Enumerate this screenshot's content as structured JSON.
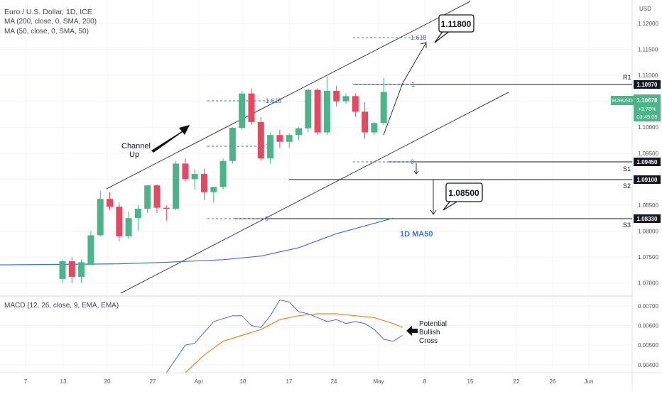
{
  "header": {
    "symbol_line": "Euro / U.S. Dollar, 1D, ICE",
    "ma200_line": "MA (200, close, 0, SMA, 200)",
    "ma50_line": "MA (50, close, 0, SMA, 50)",
    "macd_line": "MACD (12, 26, close, 9, EMA, EMA)"
  },
  "price_axis": {
    "currency": "USD",
    "ticks": [
      "1.12000",
      "1.11500",
      "1.11000",
      "1.10500",
      "1.10000",
      "1.09500",
      "1.09000",
      "1.08500",
      "1.08000",
      "1.07500",
      "1.07000"
    ]
  },
  "macd_axis": {
    "ticks": [
      "0.00700",
      "0.00600",
      "0.00500",
      "0.00400"
    ]
  },
  "time_axis": {
    "labels": [
      "7",
      "13",
      "20",
      "27",
      "Apr",
      "10",
      "17",
      "24",
      "May",
      "8",
      "15",
      "22",
      "26",
      "Jun"
    ]
  },
  "badges": {
    "r1_label": "R1",
    "r1_value": "1.10970",
    "s1_label": "S1",
    "s1_value": "1.09450",
    "s2_label": "S2",
    "s2_value": "1.09100",
    "s3_label": "S3",
    "s3_value": "1.08330",
    "current_symbol": "EURUSD",
    "current_price": "1.10678",
    "current_change": "+3.78%",
    "current_timer": "03:45:05"
  },
  "annotations": {
    "target_up": "1.11800",
    "target_down": "1.08500",
    "channel_label_1": "Channel",
    "channel_label_2": "Up",
    "ma50_label": "1D MA50",
    "macd_note_1": "Potential",
    "macd_note_2": "Bullish",
    "macd_note_3": "Cross",
    "fib_1618_a": "1.618",
    "fib_1_a": "1",
    "fib_0_a": "0",
    "fib_1618_b": "1.618",
    "fib_1_b": "1",
    "fib_0_b": "0"
  },
  "colors": {
    "up": "#4db389",
    "down": "#e8475f",
    "ma50": "#3f6fdc",
    "macd": "#3f6fdc",
    "signal": "#f08522",
    "current_badge": "#4db389",
    "fib": "#3f6fdc"
  },
  "chart_data": {
    "type": "candlestick",
    "pair": "EUR/USD",
    "timeframe": "1D",
    "candles": [
      {
        "o": 1.0708,
        "h": 1.0745,
        "l": 1.07,
        "c": 1.0742
      },
      {
        "o": 1.0742,
        "h": 1.075,
        "l": 1.07,
        "c": 1.0712
      },
      {
        "o": 1.0712,
        "h": 1.0745,
        "l": 1.07,
        "c": 1.074
      },
      {
        "o": 1.0735,
        "h": 1.08,
        "l": 1.0735,
        "c": 1.0792
      },
      {
        "o": 1.0792,
        "h": 1.0878,
        "l": 1.079,
        "c": 1.0862
      },
      {
        "o": 1.0862,
        "h": 1.0875,
        "l": 1.084,
        "c": 1.0847
      },
      {
        "o": 1.0847,
        "h": 1.0855,
        "l": 1.078,
        "c": 1.079
      },
      {
        "o": 1.079,
        "h": 1.0838,
        "l": 1.0785,
        "c": 1.0825
      },
      {
        "o": 1.0825,
        "h": 1.085,
        "l": 1.08,
        "c": 1.0843
      },
      {
        "o": 1.0843,
        "h": 1.0888,
        "l": 1.0835,
        "c": 1.0888
      },
      {
        "o": 1.0888,
        "h": 1.089,
        "l": 1.0835,
        "c": 1.0845
      },
      {
        "o": 1.0845,
        "h": 1.085,
        "l": 1.082,
        "c": 1.0843
      },
      {
        "o": 1.0843,
        "h": 1.0935,
        "l": 1.084,
        "c": 1.093
      },
      {
        "o": 1.093,
        "h": 1.094,
        "l": 1.0895,
        "c": 1.09
      },
      {
        "o": 1.09,
        "h": 1.0918,
        "l": 1.088,
        "c": 1.091
      },
      {
        "o": 1.091,
        "h": 1.092,
        "l": 1.086,
        "c": 1.0875
      },
      {
        "o": 1.0875,
        "h": 1.0885,
        "l": 1.0855,
        "c": 1.0885
      },
      {
        "o": 1.0885,
        "h": 1.094,
        "l": 1.088,
        "c": 1.0935
      },
      {
        "o": 1.0935,
        "h": 1.1,
        "l": 1.093,
        "c": 1.0999
      },
      {
        "o": 1.0999,
        "h": 1.107,
        "l": 1.0995,
        "c": 1.1065
      },
      {
        "o": 1.1065,
        "h": 1.1075,
        "l": 1.1005,
        "c": 1.101
      },
      {
        "o": 1.101,
        "h": 1.102,
        "l": 1.0935,
        "c": 1.094
      },
      {
        "o": 1.094,
        "h": 1.099,
        "l": 1.093,
        "c": 1.0985
      },
      {
        "o": 1.0985,
        "h": 1.0995,
        "l": 1.096,
        "c": 1.0972
      },
      {
        "o": 1.0972,
        "h": 1.0988,
        "l": 1.096,
        "c": 1.0985
      },
      {
        "o": 1.0985,
        "h": 1.1,
        "l": 1.0975,
        "c": 1.0998
      },
      {
        "o": 1.0998,
        "h": 1.1075,
        "l": 1.099,
        "c": 1.1072
      },
      {
        "o": 1.1072,
        "h": 1.1075,
        "l": 1.0985,
        "c": 1.099
      },
      {
        "o": 1.099,
        "h": 1.1098,
        "l": 1.0985,
        "c": 1.107
      },
      {
        "o": 1.107,
        "h": 1.108,
        "l": 1.104,
        "c": 1.105
      },
      {
        "o": 1.105,
        "h": 1.1065,
        "l": 1.1045,
        "c": 1.106
      },
      {
        "o": 1.106,
        "h": 1.1065,
        "l": 1.102,
        "c": 1.103
      },
      {
        "o": 1.103,
        "h": 1.1048,
        "l": 1.0978,
        "c": 1.099
      },
      {
        "o": 1.099,
        "h": 1.101,
        "l": 1.0985,
        "c": 1.1008
      },
      {
        "o": 1.1008,
        "h": 1.1095,
        "l": 1.1005,
        "c": 1.1068
      }
    ],
    "ma50": [
      {
        "t": 0,
        "v": 1.0735
      },
      {
        "t": 5,
        "v": 1.0737
      },
      {
        "t": 10,
        "v": 1.074
      },
      {
        "t": 16,
        "v": 1.0745
      },
      {
        "t": 20,
        "v": 1.0752
      },
      {
        "t": 24,
        "v": 1.0768
      },
      {
        "t": 28,
        "v": 1.0795
      },
      {
        "t": 32,
        "v": 1.0815
      },
      {
        "t": 34,
        "v": 1.0825
      }
    ],
    "macd": [
      {
        "t": 11,
        "v": 0.0036
      },
      {
        "t": 13,
        "v": 0.005
      },
      {
        "t": 14,
        "v": 0.0051
      },
      {
        "t": 16,
        "v": 0.0062
      },
      {
        "t": 18,
        "v": 0.0065
      },
      {
        "t": 19,
        "v": 0.0065
      },
      {
        "t": 20,
        "v": 0.006
      },
      {
        "t": 21,
        "v": 0.0059
      },
      {
        "t": 22,
        "v": 0.0065
      },
      {
        "t": 23,
        "v": 0.0073
      },
      {
        "t": 24,
        "v": 0.0072
      },
      {
        "t": 25,
        "v": 0.0067
      },
      {
        "t": 26,
        "v": 0.0066
      },
      {
        "t": 27,
        "v": 0.0064
      },
      {
        "t": 28,
        "v": 0.0062
      },
      {
        "t": 29,
        "v": 0.0063
      },
      {
        "t": 30,
        "v": 0.0061
      },
      {
        "t": 31,
        "v": 0.0062
      },
      {
        "t": 32,
        "v": 0.0061
      },
      {
        "t": 33,
        "v": 0.0058
      },
      {
        "t": 34,
        "v": 0.0053
      },
      {
        "t": 35,
        "v": 0.0052
      },
      {
        "t": 36,
        "v": 0.0055
      }
    ],
    "signal": [
      {
        "t": 13,
        "v": 0.0036
      },
      {
        "t": 15,
        "v": 0.0045
      },
      {
        "t": 17,
        "v": 0.0052
      },
      {
        "t": 19,
        "v": 0.0055
      },
      {
        "t": 21,
        "v": 0.0058
      },
      {
        "t": 23,
        "v": 0.0063
      },
      {
        "t": 25,
        "v": 0.0065
      },
      {
        "t": 27,
        "v": 0.0066
      },
      {
        "t": 29,
        "v": 0.0066
      },
      {
        "t": 31,
        "v": 0.0065
      },
      {
        "t": 33,
        "v": 0.0064
      },
      {
        "t": 35,
        "v": 0.0061
      },
      {
        "t": 36,
        "v": 0.0059
      }
    ],
    "levels": {
      "r1": 1.1097,
      "s1": 1.0945,
      "s2": 1.091,
      "s3": 1.0833
    },
    "targets": {
      "up": 1.118,
      "down": 1.085
    },
    "price_range": [
      1.0675,
      1.1245
    ],
    "macd_range": [
      0.0036,
      0.0075
    ]
  }
}
